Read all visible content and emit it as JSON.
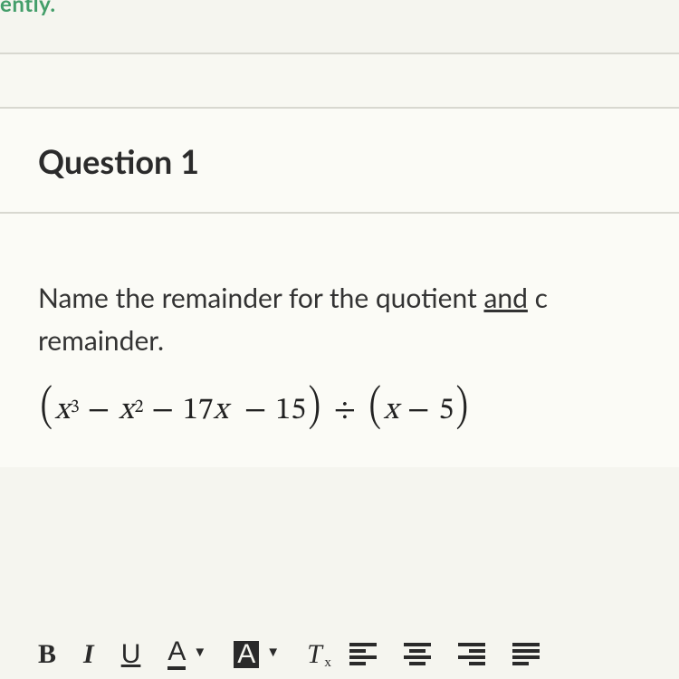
{
  "partial_top_text": "ently.",
  "colors": {
    "page_bg": "#f5f5ef",
    "card_bg": "#fbfbf6",
    "divider": "#d8d8d0",
    "text": "#2a2a2a",
    "accent_green": "#449e6a"
  },
  "question": {
    "number_label": "Question 1",
    "prompt_prefix": "Name the remainder for the quotient ",
    "prompt_underlined": "and",
    "prompt_suffix_cut": " c",
    "prompt_line2": "remainder.",
    "expression": {
      "raw": "(x^3 - x^2 - 17x - 15) ÷ (x - 5)",
      "dividend": {
        "terms": [
          {
            "coef": 1,
            "var": "x",
            "power": 3,
            "display": "x³"
          },
          {
            "op": "−",
            "coef": 1,
            "var": "x",
            "power": 2,
            "display": "x²"
          },
          {
            "op": "−",
            "coef": 17,
            "var": "x",
            "power": 1,
            "display": "17x"
          },
          {
            "op": "−",
            "coef": 15,
            "var": null,
            "power": 0,
            "display": "15"
          }
        ]
      },
      "divisor": {
        "terms": [
          {
            "coef": 1,
            "var": "x",
            "power": 1,
            "display": "x"
          },
          {
            "op": "−",
            "coef": 5,
            "var": null,
            "power": 0,
            "display": "5"
          }
        ]
      },
      "operator": "÷"
    }
  },
  "toolbar": {
    "bold_label": "B",
    "italic_label": "I",
    "underline_label": "U",
    "text_color_label": "A",
    "bg_color_label": "A",
    "clear_format_label": "T",
    "clear_format_sub": "x",
    "caret": "▼",
    "buttons_semantic": [
      "bold",
      "italic",
      "underline",
      "text-color",
      "bg-color",
      "clear-formatting",
      "align-left",
      "align-center",
      "align-right",
      "align-justify"
    ]
  }
}
